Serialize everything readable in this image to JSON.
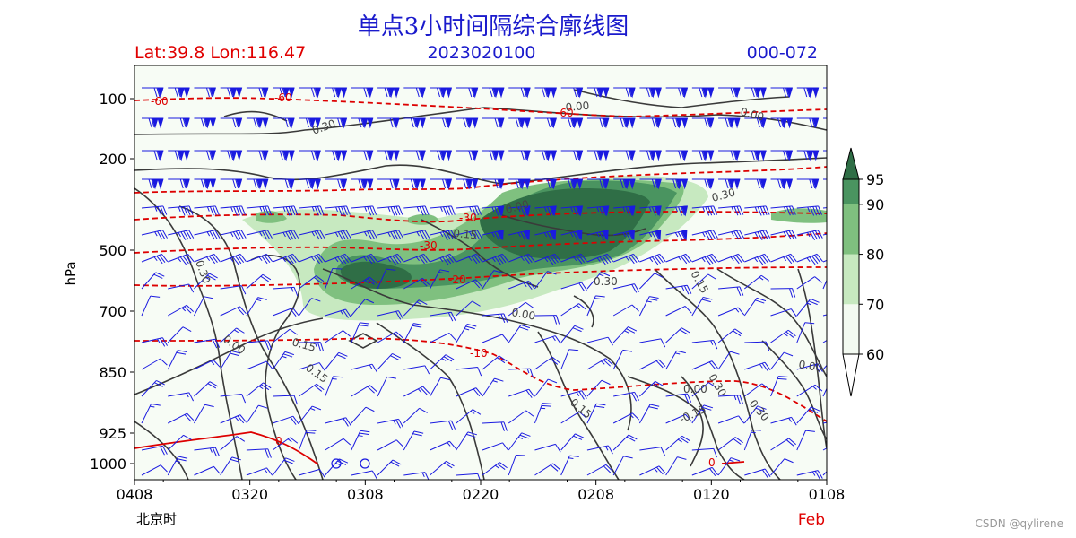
{
  "chart_data": {
    "type": "heatmap",
    "title": "单点3小时间隔综合廓线图",
    "header": {
      "location": "Lat:39.8 Lon:116.47",
      "init_time": "2023020100",
      "forecast_range": "000-072"
    },
    "ylabel": "hPa",
    "xlabel": "北京时",
    "xlabel_right": "Feb",
    "x_ticks": [
      "0408",
      "0320",
      "0308",
      "0220",
      "0208",
      "0120",
      "0108"
    ],
    "y_ticks": [
      100,
      200,
      500,
      700,
      850,
      925,
      1000
    ],
    "colorbar": {
      "ticks": [
        95,
        90,
        80,
        70,
        60
      ],
      "levels": [
        60,
        70,
        80,
        90,
        95
      ],
      "colors": [
        "#f3faf1",
        "#c7e9c0",
        "#7fc07f",
        "#4a9460",
        "#2f6e46"
      ]
    },
    "humidity_areas": [
      {
        "level": 95,
        "points": [
          [
            8,
            270
          ],
          [
            8,
            430
          ],
          [
            21,
            380
          ],
          [
            25,
            300
          ],
          [
            22,
            210
          ]
        ]
      },
      {
        "level": 90,
        "points": [
          [
            22,
            210
          ],
          [
            25,
            300
          ],
          [
            22,
            470
          ],
          [
            35,
            470
          ],
          [
            36,
            300
          ],
          [
            30,
            200
          ]
        ]
      },
      {
        "level": 90,
        "points": [
          [
            48,
            480
          ],
          [
            50,
            600
          ],
          [
            62,
            640
          ],
          [
            70,
            560
          ],
          [
            65,
            490
          ]
        ]
      }
    ],
    "black_contour_labels": [
      "0.00",
      "0.00",
      "0.30",
      "0.15",
      "0.30",
      "0.00",
      "0.15",
      "0.00",
      "0.15",
      "0.30",
      "0.30",
      "0.00",
      "-0.15",
      "0.15",
      "0.00",
      "0.30",
      "0.15",
      "0.30",
      "0.00"
    ],
    "temperature_labels": [
      "-60",
      "-60",
      "-60",
      "-30",
      "-30",
      "-20",
      "-10",
      "0",
      "0"
    ],
    "watermark": "CSDN @qylirene"
  }
}
